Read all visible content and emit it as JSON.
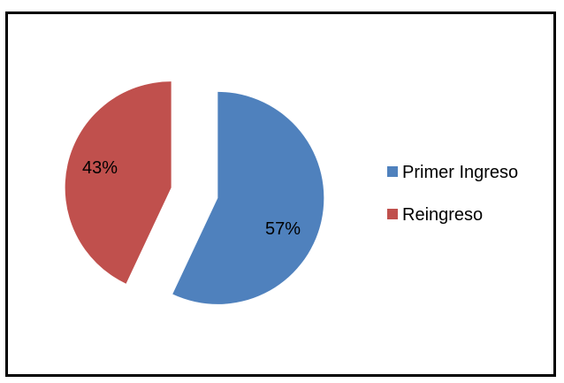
{
  "chart_data": {
    "type": "pie",
    "title": "",
    "categories": [
      "Primer Ingreso",
      "Reingreso"
    ],
    "values": [
      57,
      43
    ],
    "labels": [
      "57%",
      "43%"
    ],
    "colors": [
      "#4F81BD",
      "#C0504D"
    ],
    "exploded": true,
    "legend_position": "right"
  }
}
